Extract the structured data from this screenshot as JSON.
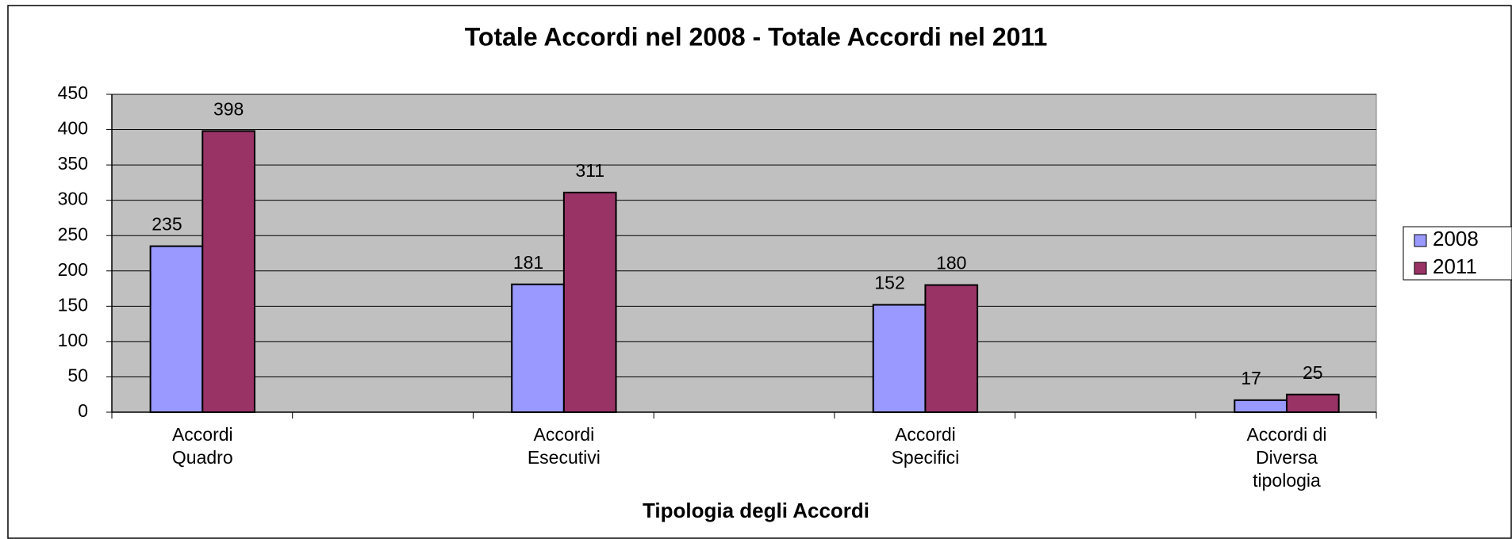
{
  "chart_data": {
    "type": "bar",
    "title": "Totale Accordi nel 2008 - Totale Accordi nel 2011",
    "x_label": "Tipologia degli Accordi",
    "categories": [
      [
        "Accordi",
        "Quadro"
      ],
      [
        "Accordi",
        "Esecutivi"
      ],
      [
        "Accordi",
        "Specifici"
      ],
      [
        "Accordi di",
        "Diversa",
        "tipologia"
      ]
    ],
    "series": [
      {
        "name": "2008",
        "color": "#9999ff",
        "values": [
          235,
          181,
          152,
          17
        ]
      },
      {
        "name": "2011",
        "color": "#993366",
        "values": [
          398,
          311,
          180,
          25
        ]
      }
    ],
    "ylim": [
      0,
      450
    ],
    "yticks": [
      0,
      50,
      100,
      150,
      200,
      250,
      300,
      350,
      400,
      450
    ],
    "grid": true,
    "legend": "right"
  }
}
